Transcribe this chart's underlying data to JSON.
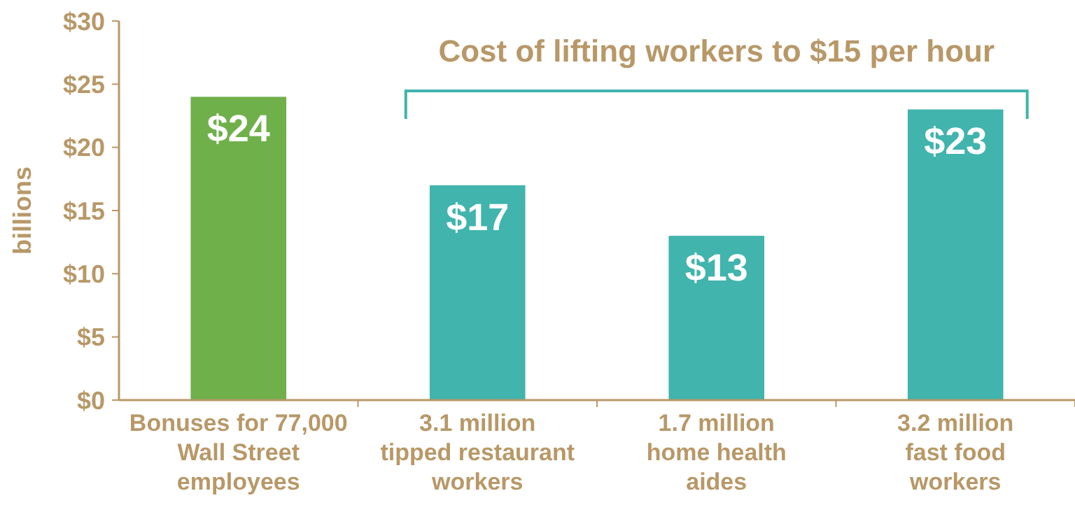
{
  "chart_data": {
    "type": "bar",
    "ylabel": "billions",
    "categories": [
      "Bonuses for 77,000\nWall Street\nemployees",
      "3.1 million\ntipped restaurant\nworkers",
      "1.7 million\nhome health\naides",
      "3.2 million\nfast food\nworkers"
    ],
    "values": [
      24,
      17,
      13,
      23
    ],
    "colors": [
      "#6fb04b",
      "#40b4ad",
      "#40b4ad",
      "#40b4ad"
    ],
    "value_labels": [
      "$24",
      "$17",
      "$13",
      "$23"
    ],
    "ylim": [
      0,
      30
    ],
    "yticks": [
      {
        "value": 0,
        "label": "$0"
      },
      {
        "value": 5,
        "label": "$5"
      },
      {
        "value": 10,
        "label": "$10"
      },
      {
        "value": 15,
        "label": "$15"
      },
      {
        "value": 20,
        "label": "$20"
      },
      {
        "value": 25,
        "label": "$25"
      },
      {
        "value": 30,
        "label": "$30"
      }
    ],
    "annotations": [
      "Cost of lifting workers to $15 per hour"
    ]
  }
}
